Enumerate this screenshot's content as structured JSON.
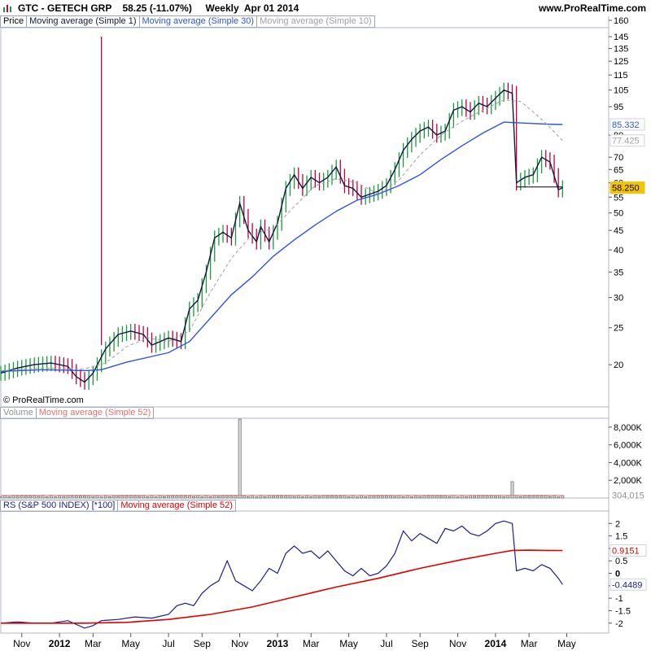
{
  "header": {
    "title": "GTC - GETECH GRP    58.25 (-11.07%)     Weekly  Apr 01 2014",
    "site": "www.ProRealTime.com",
    "credit": "© ProRealTime.com"
  },
  "legends": {
    "price": [
      "Price",
      "Moving average (Simple 1)",
      "Moving average (Simple 30)",
      "Moving average (Simple 10)"
    ],
    "volume": [
      "Volume",
      "Moving average (Simple 52)"
    ],
    "rs": [
      "RS (S&P 500 INDEX) [*100]",
      "Moving average (Simple 52)"
    ]
  },
  "colors": {
    "up_bar": "#1a9a3a",
    "down_bar": "#c0003c",
    "ma1": "#101840",
    "ma30": "#2f55e0",
    "ma10": "#a0a0a0",
    "rs_line": "#1c1c8c",
    "rs_ma": "#e00000",
    "price_tag": "#f5c400"
  },
  "chart_data": [
    {
      "type": "line",
      "panel": "price",
      "scale": "log",
      "ylim": [
        15.5,
        160
      ],
      "y_ticks": [
        160,
        145,
        135,
        125,
        115,
        105,
        95,
        80,
        70,
        65,
        60,
        55,
        50,
        45,
        40,
        35,
        30,
        25,
        20
      ],
      "x_ticks": [
        "Nov",
        "2012",
        "Mar",
        "May",
        "Jul",
        "Sep",
        "Nov",
        "2013",
        "Mar",
        "May",
        "Jul",
        "Sep",
        "Nov",
        "2014",
        "Mar",
        "May"
      ],
      "x_tick_weeks": [
        5,
        14,
        22,
        31,
        40,
        48,
        57,
        66,
        74,
        83,
        92,
        100,
        109,
        118,
        126,
        135
      ],
      "n_weeks": 145,
      "series": [
        {
          "name": "Moving average (Simple 1)",
          "color": "#101840",
          "points": [
            [
              0,
              19.0
            ],
            [
              4,
              19.6
            ],
            [
              8,
              20.0
            ],
            [
              12,
              20.2
            ],
            [
              16,
              19.8
            ],
            [
              18,
              18.6
            ],
            [
              20,
              18.0
            ],
            [
              22,
              19.0
            ],
            [
              25,
              22.0
            ],
            [
              28,
              24.0
            ],
            [
              31,
              24.5
            ],
            [
              34,
              24.0
            ],
            [
              36,
              22.5
            ],
            [
              40,
              23.5
            ],
            [
              43,
              23.0
            ],
            [
              45,
              28.0
            ],
            [
              47,
              29.5
            ],
            [
              49,
              35.0
            ],
            [
              51,
              43.0
            ],
            [
              53,
              44.5
            ],
            [
              55,
              43.0
            ],
            [
              57,
              53.0
            ],
            [
              59,
              45.0
            ],
            [
              61,
              42.0
            ],
            [
              62,
              46.0
            ],
            [
              64,
              42.0
            ],
            [
              66,
              47.0
            ],
            [
              68,
              58.0
            ],
            [
              70,
              63.0
            ],
            [
              72,
              58.0
            ],
            [
              74,
              62.0
            ],
            [
              76,
              60.0
            ],
            [
              78,
              62.0
            ],
            [
              80,
              66.0
            ],
            [
              82,
              59.0
            ],
            [
              84,
              58.0
            ],
            [
              86,
              55.0
            ],
            [
              88,
              56.0
            ],
            [
              90,
              57.0
            ],
            [
              92,
              59.0
            ],
            [
              94,
              65.0
            ],
            [
              96,
              73.0
            ],
            [
              98,
              78.0
            ],
            [
              100,
              82.0
            ],
            [
              102,
              84.0
            ],
            [
              104,
              80.0
            ],
            [
              106,
              82.0
            ],
            [
              108,
              93.0
            ],
            [
              110,
              95.0
            ],
            [
              112,
              92.0
            ],
            [
              114,
              97.0
            ],
            [
              116,
              95.0
            ],
            [
              118,
              100.0
            ],
            [
              120,
              105.0
            ],
            [
              122,
              103.0
            ],
            [
              123,
              60.0
            ],
            [
              125,
              62.0
            ],
            [
              127,
              63.0
            ],
            [
              129,
              70.0
            ],
            [
              131,
              68.0
            ],
            [
              133,
              57.5
            ],
            [
              134,
              58.25
            ]
          ]
        },
        {
          "name": "Moving average (Simple 30)",
          "color": "#2f55e0",
          "points": [
            [
              0,
              19.2
            ],
            [
              10,
              19.4
            ],
            [
              20,
              19.3
            ],
            [
              24,
              19.4
            ],
            [
              30,
              20.3
            ],
            [
              40,
              21.5
            ],
            [
              45,
              23.0
            ],
            [
              50,
              26.5
            ],
            [
              55,
              30.5
            ],
            [
              60,
              34.0
            ],
            [
              65,
              38.5
            ],
            [
              70,
              42.5
            ],
            [
              75,
              46.5
            ],
            [
              80,
              50.5
            ],
            [
              85,
              54.0
            ],
            [
              90,
              56.0
            ],
            [
              95,
              59.0
            ],
            [
              100,
              63.0
            ],
            [
              105,
              69.0
            ],
            [
              110,
              75.0
            ],
            [
              115,
              81.0
            ],
            [
              120,
              86.5
            ],
            [
              125,
              86.0
            ],
            [
              130,
              85.5
            ],
            [
              134,
              85.3
            ]
          ]
        },
        {
          "name": "Moving average (Simple 10)",
          "color": "#a0a0a0",
          "dashed": true,
          "points": [
            [
              0,
              19.3
            ],
            [
              10,
              19.6
            ],
            [
              20,
              19.5
            ],
            [
              25,
              20.2
            ],
            [
              30,
              22.3
            ],
            [
              35,
              23.5
            ],
            [
              40,
              23.0
            ],
            [
              45,
              24.5
            ],
            [
              50,
              31.0
            ],
            [
              55,
              38.0
            ],
            [
              60,
              44.0
            ],
            [
              65,
              45.5
            ],
            [
              70,
              52.0
            ],
            [
              75,
              59.0
            ],
            [
              80,
              61.5
            ],
            [
              85,
              60.0
            ],
            [
              90,
              56.0
            ],
            [
              95,
              61.0
            ],
            [
              100,
              71.0
            ],
            [
              105,
              80.0
            ],
            [
              110,
              87.0
            ],
            [
              115,
              93.0
            ],
            [
              120,
              99.0
            ],
            [
              124,
              98.0
            ],
            [
              127,
              92.0
            ],
            [
              130,
              86.0
            ],
            [
              134,
              77.4
            ]
          ]
        }
      ],
      "spike": {
        "week": 24,
        "high": 145,
        "low": 22.5
      },
      "price_levels": [
        {
          "label": "85.332",
          "value": 85.332,
          "color": "#2f55e0"
        },
        {
          "label": "77.425",
          "value": 77.425,
          "color": "#a0a0a0"
        },
        {
          "label": "58.250",
          "value": 58.25,
          "color": "#f5c400"
        }
      ]
    },
    {
      "type": "bar",
      "panel": "volume",
      "ylim": [
        0,
        9000
      ],
      "y_ticks": [
        8000,
        6000,
        4000,
        2000
      ],
      "y_tick_labels": [
        "8,000K",
        "6,000K",
        "4,000K",
        "2,000K"
      ],
      "values_k": [
        {
          "week": 57,
          "value": 8900
        },
        {
          "week": 122,
          "value": 1850
        }
      ],
      "baseline_k": 200,
      "ma_line_k": 304,
      "last_label": "304,015"
    },
    {
      "type": "line",
      "panel": "rs",
      "ylim": [
        -2.4,
        2.5
      ],
      "y_ticks": [
        2,
        1.5,
        1,
        0.5,
        0,
        -0.5,
        -1,
        -1.5,
        -2
      ],
      "y_tick_labels": [
        "2",
        "1.5",
        "1",
        "0.5",
        "0",
        "-0.5",
        "-1",
        "-1.5",
        "-2"
      ],
      "series": [
        {
          "name": "RS (S&P 500 INDEX) [*100]",
          "color": "#1c1c8c",
          "points": [
            [
              0,
              -2.0
            ],
            [
              4,
              -1.95
            ],
            [
              8,
              -2.0
            ],
            [
              12,
              -2.0
            ],
            [
              16,
              -1.9
            ],
            [
              20,
              -2.2
            ],
            [
              22,
              -2.1
            ],
            [
              24,
              -1.9
            ],
            [
              28,
              -1.85
            ],
            [
              32,
              -1.75
            ],
            [
              36,
              -1.8
            ],
            [
              40,
              -1.65
            ],
            [
              42,
              -1.3
            ],
            [
              44,
              -1.2
            ],
            [
              46,
              -1.3
            ],
            [
              48,
              -0.8
            ],
            [
              50,
              -0.5
            ],
            [
              52,
              -0.3
            ],
            [
              54,
              0.5
            ],
            [
              56,
              -0.3
            ],
            [
              58,
              -0.5
            ],
            [
              60,
              -0.7
            ],
            [
              62,
              -0.3
            ],
            [
              64,
              0.2
            ],
            [
              66,
              0.0
            ],
            [
              68,
              0.8
            ],
            [
              70,
              1.1
            ],
            [
              72,
              0.8
            ],
            [
              74,
              0.9
            ],
            [
              76,
              0.6
            ],
            [
              78,
              0.9
            ],
            [
              80,
              0.5
            ],
            [
              82,
              0.1
            ],
            [
              84,
              -0.1
            ],
            [
              86,
              0.2
            ],
            [
              88,
              -0.1
            ],
            [
              90,
              0.0
            ],
            [
              92,
              0.3
            ],
            [
              94,
              0.8
            ],
            [
              96,
              1.7
            ],
            [
              98,
              1.3
            ],
            [
              100,
              1.6
            ],
            [
              102,
              1.4
            ],
            [
              104,
              1.2
            ],
            [
              106,
              1.8
            ],
            [
              108,
              1.7
            ],
            [
              110,
              1.9
            ],
            [
              112,
              1.6
            ],
            [
              114,
              1.5
            ],
            [
              116,
              1.7
            ],
            [
              118,
              2.0
            ],
            [
              120,
              2.1
            ],
            [
              122,
              2.0
            ],
            [
              123,
              0.1
            ],
            [
              125,
              0.2
            ],
            [
              127,
              0.1
            ],
            [
              129,
              0.35
            ],
            [
              131,
              0.2
            ],
            [
              133,
              -0.2
            ],
            [
              134,
              -0.4489
            ]
          ]
        },
        {
          "name": "Moving average (Simple 52)",
          "color": "#e00000",
          "points": [
            [
              0,
              -2.0
            ],
            [
              10,
              -2.0
            ],
            [
              20,
              -2.0
            ],
            [
              30,
              -1.97
            ],
            [
              40,
              -1.85
            ],
            [
              50,
              -1.65
            ],
            [
              60,
              -1.35
            ],
            [
              70,
              -0.95
            ],
            [
              80,
              -0.55
            ],
            [
              90,
              -0.2
            ],
            [
              100,
              0.2
            ],
            [
              110,
              0.55
            ],
            [
              118,
              0.8
            ],
            [
              122,
              0.92
            ],
            [
              126,
              0.93
            ],
            [
              130,
              0.92
            ],
            [
              134,
              0.9151
            ]
          ]
        }
      ],
      "price_levels": [
        {
          "label": "0.9151",
          "value": 0.9151,
          "color": "#e00000"
        },
        {
          "label": "-0.4489",
          "value": -0.4489,
          "color": "#1c1c8c"
        }
      ]
    }
  ]
}
